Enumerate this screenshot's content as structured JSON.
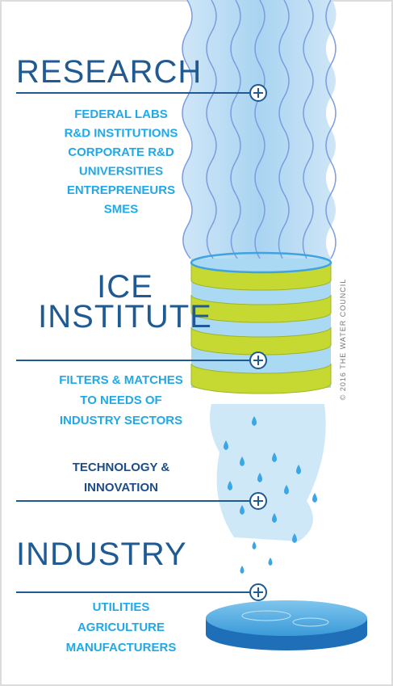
{
  "research": {
    "title": "RESEARCH",
    "items": [
      "FEDERAL LABS",
      "R&D INSTITUTIONS",
      "CORPORATE R&D",
      "UNIVERSITIES",
      "ENTREPRENEURS",
      "SMES"
    ]
  },
  "ice_institute": {
    "title": [
      "ICE",
      "INSTITUTE"
    ],
    "items": [
      "FILTERS & MATCHES",
      "TO NEEDS OF",
      "INDUSTRY SECTORS"
    ]
  },
  "technology": {
    "items": [
      "TECHNOLOGY &",
      "INNOVATION"
    ]
  },
  "industry": {
    "title": "INDUSTRY",
    "items": [
      "UTILITIES",
      "AGRICULTURE",
      "MANUFACTURERS"
    ]
  },
  "credit": "© 2016 THE WATER COUNCIL"
}
